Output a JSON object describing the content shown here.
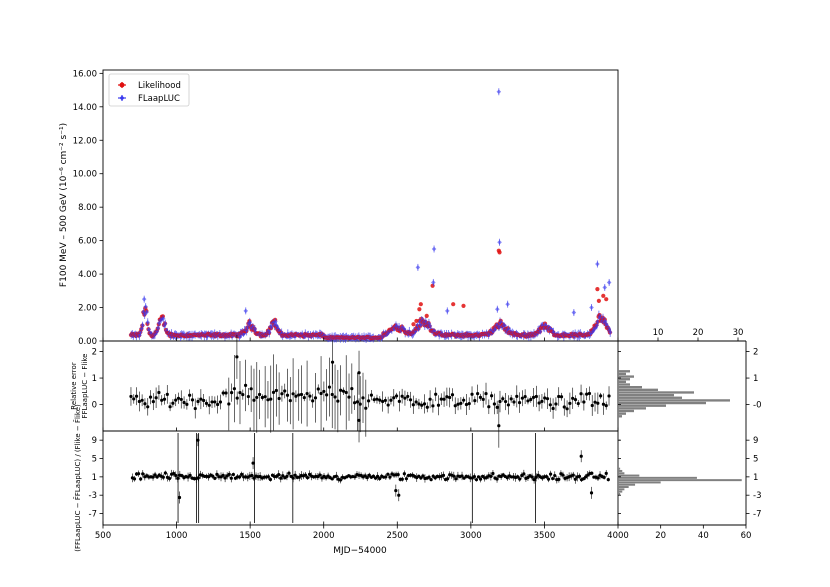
{
  "chart_data": [
    {
      "type": "scatter",
      "panel": "main",
      "ylabel": "F100 MeV – 500 GeV (10⁻⁶ cm⁻² s⁻¹)",
      "ylim": [
        0,
        16.2
      ],
      "xlim": [
        500,
        4000
      ],
      "yticks": [
        "0.00",
        "2.00",
        "4.00",
        "6.00",
        "8.00",
        "10.00",
        "12.00",
        "14.00",
        "16.00"
      ],
      "legend": {
        "placement": "top-left",
        "entries": [
          "Likelihood",
          "FLaapLUC"
        ]
      },
      "colors": {
        "likelihood": "#e01010",
        "flaapluc": "#3a3aee"
      },
      "series": [
        {
          "name": "Likelihood",
          "x": [
            3195,
            3190,
            2740,
            2660,
            2650,
            2700,
            2880,
            2950,
            3860,
            3870,
            3900,
            3920,
            2630,
            2610
          ],
          "y": [
            5.3,
            5.4,
            3.3,
            2.2,
            1.9,
            1.5,
            2.2,
            2.1,
            3.1,
            2.4,
            2.7,
            2.5,
            1.2,
            1.0
          ]
        },
        {
          "name": "FLaapLUC",
          "x": [
            3190,
            3195,
            2750,
            2640,
            2745,
            3860,
            3180,
            3250,
            2840,
            1470,
            780,
            3700,
            3940,
            3910,
            3820
          ],
          "y": [
            14.9,
            5.9,
            5.5,
            4.4,
            3.5,
            4.6,
            1.9,
            2.2,
            1.8,
            1.8,
            2.5,
            1.7,
            3.5,
            3.2,
            2.0
          ]
        }
      ]
    },
    {
      "type": "scatter",
      "panel": "relative-error",
      "ylabel_top": "Relative error",
      "ylabel": "FFLaapLUC − Flike",
      "ylim": [
        -1.0,
        2.4
      ],
      "yticks": [
        "0",
        "1",
        "2"
      ],
      "outliers": {
        "x": [
          1410,
          2060,
          2240,
          2240,
          3190
        ],
        "y": [
          1.8,
          1.6,
          1.2,
          -0.6,
          -0.8
        ]
      }
    },
    {
      "type": "scatter",
      "panel": "normalized-difference",
      "ylabel": "(FFLaapLUC − F̄FLaapLUC) / (Flike − F̄like)",
      "ylim": [
        -9.5,
        11
      ],
      "yticks": [
        "-7",
        "-3",
        "1",
        "5",
        "9"
      ],
      "xlabel": "MJD−54000",
      "xticks": [
        "500",
        "1000",
        "1500",
        "2000",
        "2500",
        "3000",
        "3500",
        "4000"
      ],
      "outliers": {
        "x": [
          1020,
          1145,
          1520,
          3750,
          3820,
          2490,
          2510
        ],
        "y": [
          -3.5,
          9,
          4,
          5.5,
          -2.5,
          -2,
          -3
        ]
      }
    },
    {
      "type": "bar",
      "panel": "hist-relative-error",
      "orientation": "horizontal",
      "xticks": [
        "10",
        "20",
        "30"
      ],
      "yticks": [
        "-0",
        "1",
        "2"
      ],
      "bins": [
        -0.5,
        -0.4,
        -0.3,
        -0.2,
        -0.1,
        0.0,
        0.1,
        0.2,
        0.3,
        0.4,
        0.5,
        0.6,
        0.7,
        0.8,
        0.9,
        1.0,
        1.1,
        1.2
      ],
      "counts": [
        1,
        2,
        4,
        7,
        12,
        22,
        28,
        16,
        14,
        19,
        10,
        6,
        3,
        2,
        3,
        4,
        2,
        3
      ]
    },
    {
      "type": "bar",
      "panel": "hist-normalized-difference",
      "orientation": "horizontal",
      "xticks": [
        "20",
        "40",
        "60"
      ],
      "yticks": [
        "9",
        "5",
        "1",
        "-3",
        "-7"
      ],
      "bins": [
        -3,
        -2.5,
        -2,
        -1.5,
        -1,
        -0.5,
        0,
        0.5,
        1,
        1.5,
        2,
        2.5,
        3,
        9
      ],
      "counts": [
        1,
        2,
        3,
        5,
        8,
        20,
        58,
        37,
        10,
        3,
        2,
        1,
        1,
        1
      ]
    }
  ]
}
